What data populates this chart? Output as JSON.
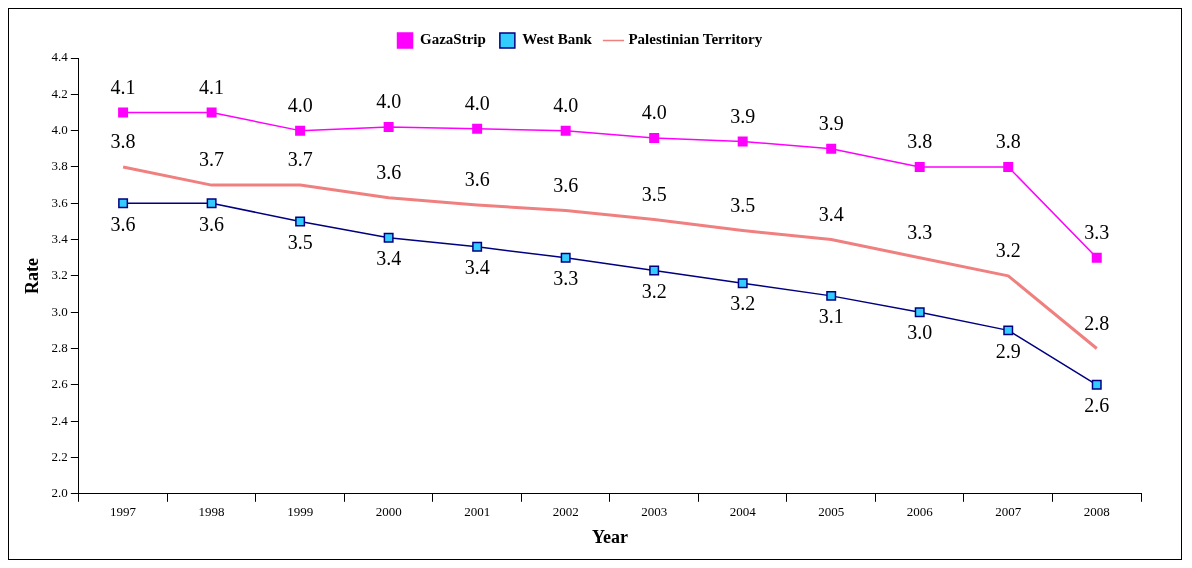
{
  "chart_data": {
    "type": "line",
    "xlabel": "Year",
    "ylabel": "Rate",
    "categories": [
      "1997",
      "1998",
      "1999",
      "2000",
      "2001",
      "2002",
      "2003",
      "2004",
      "2005",
      "2006",
      "2007",
      "2008"
    ],
    "series": [
      {
        "name": "GazaStrip",
        "color": "#ff00ff",
        "marker": "square",
        "values": [
          4.1,
          4.1,
          4.0,
          4.02,
          4.01,
          4.0,
          3.96,
          3.94,
          3.9,
          3.8,
          3.8,
          3.3
        ],
        "value_labels": [
          "4.1",
          "4.1",
          "4.0",
          "4.0",
          "4.0",
          "4.0",
          "4.0",
          "3.9",
          "3.9",
          "3.8",
          "3.8",
          "3.3"
        ]
      },
      {
        "name": "West Bank",
        "color": "#000080",
        "marker": "square",
        "values": [
          3.6,
          3.6,
          3.5,
          3.41,
          3.36,
          3.3,
          3.23,
          3.16,
          3.09,
          3.0,
          2.9,
          2.6
        ],
        "value_labels": [
          "3.6",
          "3.6",
          "3.5",
          "3.4",
          "3.4",
          "3.3",
          "3.2",
          "3.2",
          "3.1",
          "3.0",
          "2.9",
          "2.6"
        ]
      },
      {
        "name": "Palestinian Territory",
        "color": "#f08080",
        "marker": "none",
        "values": [
          3.8,
          3.7,
          3.7,
          3.63,
          3.59,
          3.56,
          3.51,
          3.45,
          3.4,
          3.3,
          3.2,
          2.8
        ],
        "value_labels": [
          "3.8",
          "3.7",
          "3.7",
          "3.6",
          "3.6",
          "3.6",
          "3.5",
          "3.5",
          "3.4",
          "3.3",
          "3.2",
          "2.8"
        ]
      }
    ],
    "ylim": [
      2.0,
      4.4
    ],
    "yticks": [
      {
        "value": 2.0,
        "label": "2.0"
      },
      {
        "value": 2.2,
        "label": "2.2"
      },
      {
        "value": 2.4,
        "label": "2.4"
      },
      {
        "value": 2.6,
        "label": "2.6"
      },
      {
        "value": 2.8,
        "label": "2.8"
      },
      {
        "value": 3.0,
        "label": "3.0"
      },
      {
        "value": 3.2,
        "label": "3.2"
      },
      {
        "value": 3.4,
        "label": "3.4"
      },
      {
        "value": 3.6,
        "label": "3.6"
      },
      {
        "value": 3.8,
        "label": "3.8"
      },
      {
        "value": 4.0,
        "label": "4.0"
      },
      {
        "value": 4.2,
        "label": "4.2"
      },
      {
        "value": 4.4,
        "label": "4.4"
      }
    ],
    "grid": false,
    "legend": "top"
  }
}
